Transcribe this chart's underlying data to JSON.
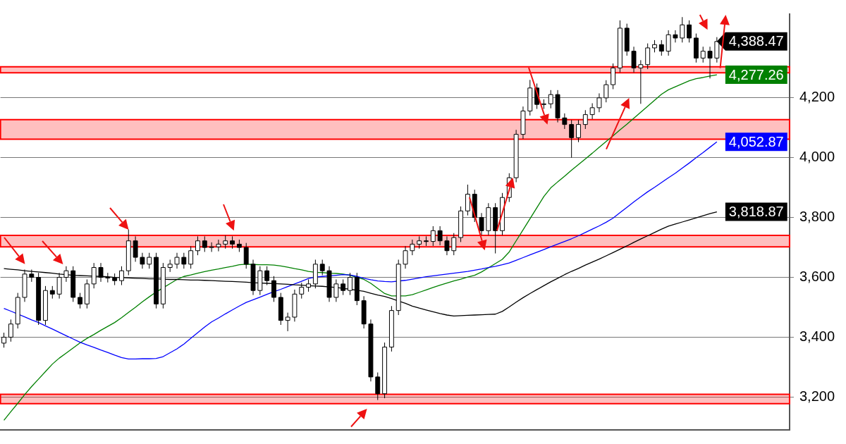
{
  "chart_data": {
    "type": "candlestick",
    "categories": [
      null,
      null,
      null,
      null,
      null,
      null,
      null,
      null,
      null,
      null,
      null,
      null,
      null,
      null,
      null,
      null,
      null,
      null,
      null,
      null,
      null,
      null,
      null,
      null,
      null,
      null,
      null,
      null,
      null,
      null,
      null,
      null,
      null,
      null,
      null,
      null,
      null,
      null,
      null,
      null,
      null,
      null,
      null,
      null,
      null,
      null,
      null,
      null,
      null,
      null,
      null,
      null,
      null,
      null,
      null,
      null,
      null,
      null,
      null,
      null,
      null,
      null,
      null,
      null,
      null,
      null,
      null,
      null,
      null,
      null,
      null,
      null,
      null,
      null,
      null,
      null,
      null,
      null,
      null,
      null,
      null,
      null,
      null,
      null,
      null,
      null,
      null,
      null,
      null,
      null,
      null,
      null,
      null,
      null,
      null,
      null,
      null,
      null,
      null,
      null,
      null,
      null,
      null,
      null
    ],
    "ohlc": [
      [
        3380,
        3415,
        3365,
        3400
      ],
      [
        3400,
        3459,
        3385,
        3444
      ],
      [
        3444,
        3548,
        3429,
        3533
      ],
      [
        3533,
        3626,
        3518,
        3611
      ],
      [
        3611,
        3626,
        3585,
        3600
      ],
      [
        3600,
        3615,
        3441,
        3456
      ],
      [
        3456,
        3571,
        3441,
        3556
      ],
      [
        3556,
        3571,
        3529,
        3544
      ],
      [
        3544,
        3615,
        3529,
        3600
      ],
      [
        3600,
        3637,
        3585,
        3622
      ],
      [
        3622,
        3637,
        3518,
        3533
      ],
      [
        3533,
        3548,
        3496,
        3511
      ],
      [
        3511,
        3593,
        3496,
        3578
      ],
      [
        3578,
        3648,
        3563,
        3633
      ],
      [
        3633,
        3648,
        3585,
        3600
      ],
      [
        3600,
        3615,
        3583,
        3598
      ],
      [
        3598,
        3613,
        3574,
        3589
      ],
      [
        3589,
        3637,
        3574,
        3622
      ],
      [
        3622,
        3760,
        3607,
        3722
      ],
      [
        3722,
        3737,
        3652,
        3667
      ],
      [
        3667,
        3682,
        3629,
        3644
      ],
      [
        3644,
        3682,
        3629,
        3667
      ],
      [
        3667,
        3682,
        3496,
        3511
      ],
      [
        3511,
        3648,
        3496,
        3633
      ],
      [
        3633,
        3659,
        3618,
        3644
      ],
      [
        3644,
        3682,
        3629,
        3667
      ],
      [
        3667,
        3682,
        3629,
        3644
      ],
      [
        3644,
        3704,
        3629,
        3689
      ],
      [
        3689,
        3737,
        3674,
        3722
      ],
      [
        3722,
        3737,
        3685,
        3700
      ],
      [
        3700,
        3717,
        3685,
        3702
      ],
      [
        3702,
        3726,
        3687,
        3711
      ],
      [
        3711,
        3740,
        3696,
        3722
      ],
      [
        3722,
        3737,
        3696,
        3711
      ],
      [
        3711,
        3726,
        3685,
        3700
      ],
      [
        3700,
        3715,
        3629,
        3644
      ],
      [
        3644,
        3659,
        3541,
        3556
      ],
      [
        3556,
        3637,
        3541,
        3622
      ],
      [
        3622,
        3637,
        3574,
        3589
      ],
      [
        3589,
        3604,
        3518,
        3533
      ],
      [
        3533,
        3548,
        3441,
        3456
      ],
      [
        3456,
        3482,
        3420,
        3467
      ],
      [
        3467,
        3559,
        3452,
        3544
      ],
      [
        3544,
        3582,
        3529,
        3567
      ],
      [
        3567,
        3593,
        3552,
        3578
      ],
      [
        3578,
        3659,
        3563,
        3644
      ],
      [
        3644,
        3659,
        3607,
        3622
      ],
      [
        3622,
        3637,
        3518,
        3533
      ],
      [
        3533,
        3593,
        3518,
        3578
      ],
      [
        3578,
        3593,
        3541,
        3556
      ],
      [
        3556,
        3615,
        3541,
        3600
      ],
      [
        3600,
        3615,
        3507,
        3522
      ],
      [
        3522,
        3537,
        3429,
        3444
      ],
      [
        3444,
        3459,
        3252,
        3267
      ],
      [
        3267,
        3282,
        3190,
        3211
      ],
      [
        3211,
        3382,
        3196,
        3367
      ],
      [
        3367,
        3504,
        3352,
        3489
      ],
      [
        3489,
        3659,
        3474,
        3644
      ],
      [
        3644,
        3704,
        3629,
        3689
      ],
      [
        3689,
        3726,
        3674,
        3711
      ],
      [
        3711,
        3737,
        3696,
        3722
      ],
      [
        3722,
        3737,
        3705,
        3720
      ],
      [
        3720,
        3771,
        3705,
        3756
      ],
      [
        3756,
        3771,
        3707,
        3722
      ],
      [
        3722,
        3737,
        3674,
        3689
      ],
      [
        3689,
        3748,
        3674,
        3733
      ],
      [
        3733,
        3837,
        3718,
        3822
      ],
      [
        3822,
        3910,
        3807,
        3878
      ],
      [
        3878,
        3893,
        3785,
        3800
      ],
      [
        3800,
        3815,
        3741,
        3756
      ],
      [
        3756,
        3848,
        3741,
        3833
      ],
      [
        3833,
        3848,
        3680,
        3756
      ],
      [
        3756,
        3882,
        3741,
        3867
      ],
      [
        3867,
        3948,
        3852,
        3933
      ],
      [
        3933,
        4093,
        3918,
        4078
      ],
      [
        4078,
        4171,
        4063,
        4156
      ],
      [
        4156,
        4260,
        4141,
        4233
      ],
      [
        4233,
        4248,
        4163,
        4178
      ],
      [
        4178,
        4195,
        4163,
        4180
      ],
      [
        4180,
        4226,
        4165,
        4211
      ],
      [
        4211,
        4226,
        4118,
        4133
      ],
      [
        4133,
        4148,
        4096,
        4111
      ],
      [
        4111,
        4126,
        4000,
        4067
      ],
      [
        4067,
        4126,
        4052,
        4111
      ],
      [
        4111,
        4159,
        4096,
        4144
      ],
      [
        4144,
        4182,
        4129,
        4167
      ],
      [
        4167,
        4215,
        4152,
        4200
      ],
      [
        4200,
        4259,
        4185,
        4244
      ],
      [
        4244,
        4315,
        4229,
        4300
      ],
      [
        4300,
        4459,
        4285,
        4433
      ],
      [
        4433,
        4448,
        4341,
        4356
      ],
      [
        4356,
        4371,
        4285,
        4300
      ],
      [
        4300,
        4326,
        4180,
        4311
      ],
      [
        4311,
        4382,
        4296,
        4367
      ],
      [
        4367,
        4393,
        4352,
        4378
      ],
      [
        4378,
        4393,
        4341,
        4356
      ],
      [
        4356,
        4426,
        4341,
        4411
      ],
      [
        4411,
        4426,
        4385,
        4400
      ],
      [
        4400,
        4470,
        4385,
        4444
      ],
      [
        4444,
        4459,
        4385,
        4400
      ],
      [
        4400,
        4415,
        4318,
        4333
      ],
      [
        4333,
        4371,
        4318,
        4356
      ],
      [
        4356,
        4371,
        4265,
        4333
      ],
      [
        4333,
        4403,
        4318,
        4388.47
      ]
    ],
    "series": [
      {
        "type": "line",
        "color": "#000000",
        "values": [
          3629,
          3627,
          3625,
          3622,
          3620,
          3618,
          3616,
          3614,
          3611,
          3609,
          3607,
          3606,
          3605,
          3604,
          3603,
          3602,
          3600,
          3599,
          3598,
          3597,
          3596,
          3595,
          3595,
          3594,
          3593,
          3593,
          3592,
          3591,
          3591,
          3590,
          3589,
          3588,
          3587,
          3586,
          3585,
          3584,
          3582,
          3581,
          3580,
          3579,
          3578,
          3577,
          3575,
          3574,
          3572,
          3571,
          3570,
          3568,
          3566,
          3563,
          3560,
          3557,
          3553,
          3547,
          3541,
          3536,
          3529,
          3521,
          3513,
          3504,
          3497,
          3491,
          3485,
          3479,
          3474,
          3471,
          3472,
          3473,
          3474,
          3475,
          3476,
          3477,
          3486,
          3501,
          3517,
          3532,
          3546,
          3559,
          3572,
          3585,
          3597,
          3609,
          3620,
          3630,
          3641,
          3651,
          3661,
          3672,
          3683,
          3694,
          3705,
          3717,
          3728,
          3739,
          3750,
          3761,
          3771,
          3778,
          3785,
          3792,
          3799,
          3806,
          3813,
          3818.87
        ],
        "value_labels": [
          null,
          null,
          null,
          null,
          null,
          null,
          null,
          null,
          null,
          null,
          null,
          null,
          null,
          null,
          null,
          null,
          null,
          null,
          null,
          null,
          null,
          null,
          null,
          null,
          null,
          null,
          null,
          null,
          null,
          null,
          null,
          null,
          null,
          null,
          null,
          null,
          null,
          null,
          null,
          null,
          null,
          null,
          null,
          null,
          null,
          null,
          null,
          null,
          null,
          null,
          null,
          null,
          null,
          null,
          null,
          null,
          null,
          null,
          null,
          null,
          null,
          null,
          null,
          null,
          null,
          null,
          null,
          null,
          null,
          null,
          null,
          null,
          null,
          null,
          null,
          null,
          null,
          null,
          null,
          null,
          null,
          null,
          null,
          null,
          null,
          null,
          null,
          null,
          null,
          null,
          null,
          null,
          null,
          null,
          null,
          null,
          null,
          null,
          null,
          null,
          null,
          null,
          null,
          "3,818.87"
        ]
      },
      {
        "type": "line",
        "color": "#0000ff",
        "values": [
          3496,
          3487,
          null,
          3468,
          3458,
          3449,
          3438,
          3427,
          3416,
          3405,
          3394,
          3383,
          3374,
          3366,
          3357,
          3349,
          3340,
          3332,
          3327,
          3327,
          3328,
          3328,
          3329,
          3335,
          3348,
          3361,
          3377,
          3396,
          3415,
          3434,
          3451,
          3464,
          3478,
          3491,
          3504,
          3516,
          3525,
          3534,
          3543,
          3552,
          3560,
          3569,
          3578,
          3587,
          3596,
          3601,
          3603,
          3605,
          3607,
          3609,
          3608,
          3603,
          3597,
          3592,
          3588,
          3586,
          3585,
          null,
          3590,
          3594,
          3598,
          3602,
          3605,
          3608,
          3611,
          3614,
          3617,
          3620,
          3624,
          3628,
          3633,
          3637,
          3642,
          3648,
          3657,
          3666,
          3675,
          3684,
          3693,
          3702,
          3711,
          3720,
          3729,
          3739,
          3750,
          3761,
          3772,
          3784,
          3798,
          3816,
          3834,
          3852,
          3869,
          3886,
          3901,
          3917,
          3933,
          3948,
          3965,
          3982,
          4000,
          4017,
          4035,
          4052.87
        ],
        "value_labels": [
          null,
          null,
          null,
          null,
          null,
          null,
          null,
          null,
          null,
          null,
          null,
          null,
          null,
          null,
          null,
          null,
          null,
          null,
          null,
          null,
          null,
          null,
          null,
          null,
          null,
          null,
          null,
          null,
          null,
          null,
          null,
          null,
          null,
          null,
          null,
          null,
          null,
          null,
          null,
          null,
          null,
          null,
          null,
          null,
          null,
          null,
          null,
          null,
          null,
          null,
          null,
          null,
          null,
          null,
          null,
          null,
          null,
          null,
          null,
          null,
          null,
          null,
          null,
          null,
          null,
          null,
          null,
          null,
          null,
          null,
          null,
          null,
          null,
          null,
          null,
          null,
          null,
          null,
          null,
          null,
          null,
          null,
          null,
          null,
          null,
          null,
          null,
          null,
          null,
          null,
          null,
          null,
          null,
          null,
          null,
          null,
          null,
          null,
          null,
          null,
          null,
          null,
          null,
          "4,052.87"
        ]
      },
      {
        "type": "line",
        "color": "#008000",
        "values": [
          3122,
          3151,
          3179,
          3208,
          3235,
          3260,
          3285,
          3310,
          3330,
          3347,
          3364,
          3381,
          3396,
          3409,
          3423,
          3436,
          3449,
          3465,
          3483,
          3500,
          3518,
          3535,
          3551,
          3565,
          3579,
          3593,
          3603,
          3608,
          3614,
          3619,
          3624,
          3628,
          3633,
          3637,
          3642,
          3644,
          3643,
          3642,
          3642,
          3641,
          3638,
          3634,
          3629,
          3625,
          3620,
          3617,
          3616,
          3614,
          3613,
          3611,
          3607,
          3600,
          3593,
          3580,
          3563,
          3546,
          3538,
          null,
          3538,
          3542,
          3550,
          3558,
          3566,
          3574,
          3581,
          3588,
          3594,
          3601,
          3607,
          3618,
          3632,
          3646,
          3660,
          3685,
          3722,
          3759,
          3796,
          3833,
          3870,
          3899,
          3919,
          3938,
          3958,
          3977,
          3996,
          4015,
          4035,
          4054,
          4073,
          4093,
          4112,
          4132,
          4152,
          4172,
          4192,
          4212,
          4227,
          4237,
          4247,
          4257,
          4264,
          4268,
          4273,
          4277.26
        ],
        "value_labels": [
          null,
          null,
          null,
          null,
          null,
          null,
          null,
          null,
          null,
          null,
          null,
          null,
          null,
          null,
          null,
          null,
          null,
          null,
          null,
          null,
          null,
          null,
          null,
          null,
          null,
          null,
          null,
          null,
          null,
          null,
          null,
          null,
          null,
          null,
          null,
          null,
          null,
          null,
          null,
          null,
          null,
          null,
          null,
          null,
          null,
          null,
          null,
          null,
          null,
          null,
          null,
          null,
          null,
          null,
          null,
          null,
          null,
          null,
          null,
          null,
          null,
          null,
          null,
          null,
          null,
          null,
          null,
          null,
          null,
          null,
          null,
          null,
          null,
          null,
          null,
          null,
          null,
          null,
          null,
          null,
          null,
          null,
          null,
          null,
          null,
          null,
          null,
          null,
          null,
          null,
          null,
          null,
          null,
          null,
          null,
          null,
          null,
          null,
          null,
          null,
          null,
          null,
          null,
          "4,277.26"
        ]
      }
    ],
    "bands": [
      {
        "axis": "y",
        "from": 4284,
        "to": 4304,
        "color": "#ff0000"
      },
      {
        "axis": "y",
        "from": 4062,
        "to": 4127,
        "color": "#ff0000"
      },
      {
        "axis": "y",
        "from": 3702,
        "to": 3740,
        "color": "#ff0000"
      },
      {
        "axis": "y",
        "from": 3178,
        "to": 3209,
        "color": "#ff0000"
      }
    ],
    "annotations": [
      "4,388.47"
    ],
    "ylim": [
      3090,
      4480
    ],
    "yticks": [
      {
        "value": 3200,
        "label": "3,200"
      },
      {
        "value": 3400,
        "label": "3,400"
      },
      {
        "value": 3600,
        "label": "3,600"
      },
      {
        "value": 3800,
        "label": "3,800"
      },
      {
        "value": 4000,
        "label": "4,000"
      },
      {
        "value": 4200,
        "label": "4,200"
      }
    ],
    "grid": "y",
    "legend": false,
    "tick_labels": "y"
  }
}
